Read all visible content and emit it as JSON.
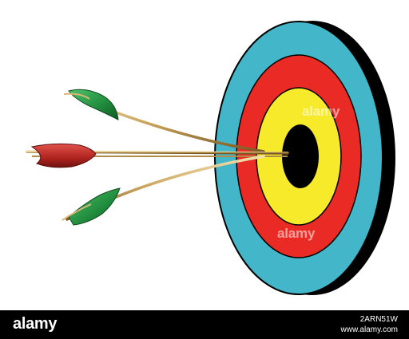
{
  "watermark": {
    "text_top": "alamy",
    "text_bottom": "alamy"
  },
  "footer": {
    "logo": "alamy",
    "image_id": "2ARN51W",
    "url": "www.alamy.com"
  },
  "colors": {
    "outer_ring": "#44b6c9",
    "red_ring": "#ea2b25",
    "yellow_ring": "#f7ea2a",
    "bullseye": "#000000",
    "target_edge": "#000000",
    "fletch_green": "#1f8a3c",
    "fletch_red": "#b0241f",
    "shaft": "#c9a25a",
    "footer_bg": "#000000"
  }
}
